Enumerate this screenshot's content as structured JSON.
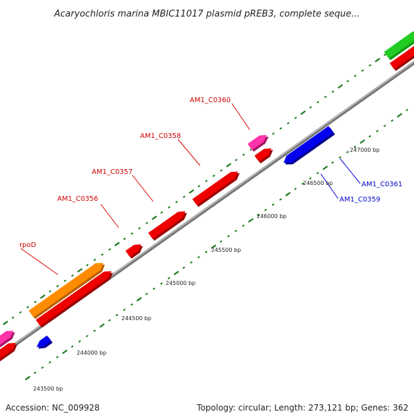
{
  "title": "Acaryochloris marina MBIC11017 plasmid pREB3, complete seque...",
  "footer": {
    "accession": "Accession: NC_009928",
    "summary": "Topology: circular; Length: 273,121 bp; Genes: 362"
  },
  "colors": {
    "backbone": "#8a8a8a",
    "tick": "#1a7a1a",
    "forward_label": "#cc0000",
    "reverse_label": "#0000cc"
  },
  "scale_labels": [
    "243500 bp",
    "244000 bp",
    "244500 bp",
    "245000 bp",
    "245500 bp",
    "246000 bp",
    "246500 bp",
    "247000 bp"
  ],
  "genes": [
    {
      "label": "rpoD",
      "strand": "forward",
      "color": "#ff8c00",
      "label_color": "#cc0000"
    },
    {
      "label": "AM1_C0356",
      "strand": "forward",
      "color": "#ee0000",
      "label_color": "#cc0000"
    },
    {
      "label": "AM1_C0357",
      "strand": "forward",
      "color": "#ee0000",
      "label_color": "#cc0000"
    },
    {
      "label": "AM1_C0358",
      "strand": "forward",
      "color": "#ee0000",
      "label_color": "#cc0000"
    },
    {
      "label": "AM1_C0360",
      "strand": "forward",
      "color": "#ff33aa",
      "label_color": "#cc0000"
    },
    {
      "label": "AM1_C0359",
      "strand": "reverse",
      "color": "#0000ee",
      "label_color": "#0000cc"
    },
    {
      "label": "AM1_C0361",
      "strand": "reverse",
      "color": "#0000ee",
      "label_color": "#0000cc"
    }
  ],
  "feature_colors": {
    "cds": "#ee0000",
    "misc": "#ff33aa",
    "reverse": "#0000ee",
    "other": "#22cc22",
    "rna": "#ff8c00"
  }
}
